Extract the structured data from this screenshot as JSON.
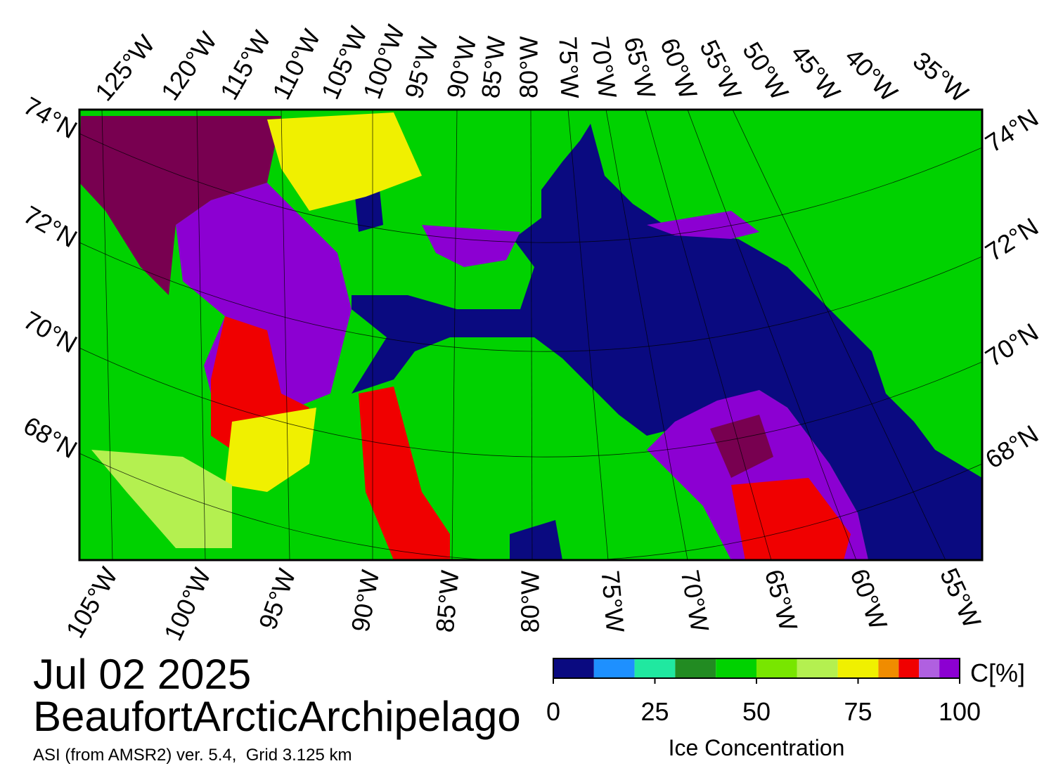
{
  "map": {
    "top_lon_labels": [
      "125°W",
      "120°W",
      "115°W",
      "110°W",
      "105°W",
      "100°W",
      "95°W",
      "90°W",
      "85°W",
      "80°W",
      "75°W",
      "70°W",
      "65°W",
      "60°W",
      "55°W",
      "50°W",
      "45°W",
      "40°W",
      "35°W"
    ],
    "bottom_lon_labels": [
      "105°W",
      "100°W",
      "95°W",
      "90°W",
      "85°W",
      "80°W",
      "75°W",
      "70°W",
      "65°W",
      "60°W",
      "55°W"
    ],
    "left_lat_labels": [
      "74°N",
      "72°N",
      "70°N",
      "68°N"
    ],
    "right_lat_labels": [
      "74°N",
      "72°N",
      "70°N",
      "68°N"
    ]
  },
  "date": "Jul 02 2025",
  "region": "BeaufortArcticArchipelago",
  "source": "ASI (from AMSR2) ver. 5.4,  Grid 3.125 km",
  "colorbar": {
    "unit": "C[%]",
    "label": "Ice Concentration",
    "lim": [
      0,
      100
    ],
    "ticks": [
      0,
      25,
      50,
      75,
      100
    ],
    "bounds": [
      0,
      10,
      20,
      30,
      40,
      50,
      60,
      70,
      80,
      85,
      90,
      95,
      100
    ],
    "colors": [
      "#0a0a80",
      "#1e90ff",
      "#20e8a0",
      "#228b22",
      "#00d200",
      "#78e600",
      "#b4f050",
      "#f0f000",
      "#f08c00",
      "#f00000",
      "#b060e0",
      "#8c00d2"
    ]
  }
}
